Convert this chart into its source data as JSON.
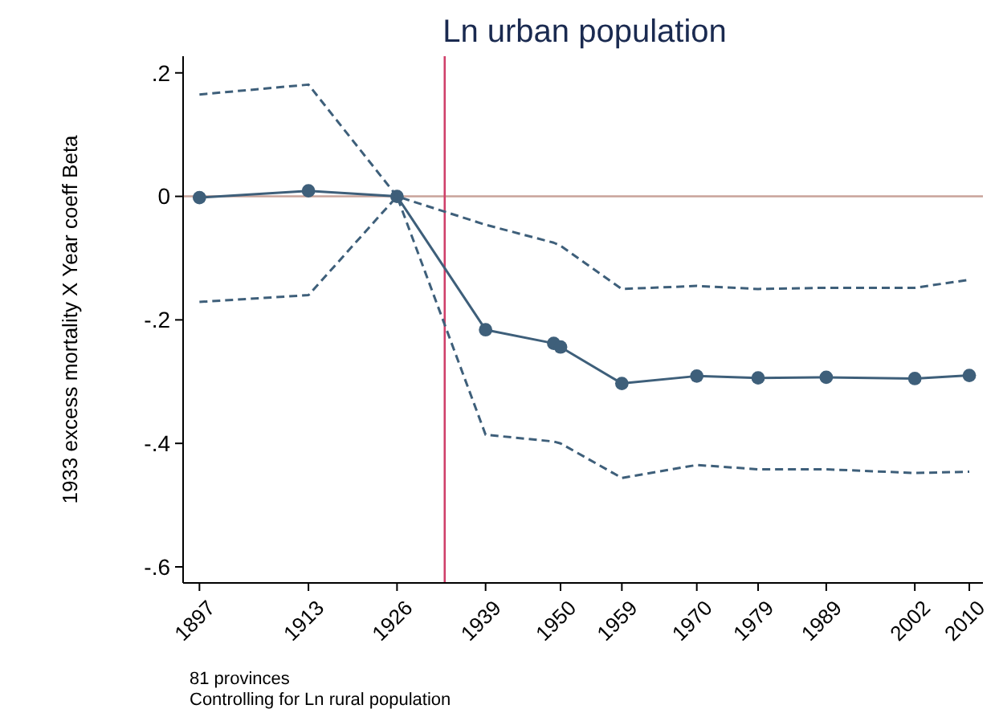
{
  "chart_data": {
    "type": "line",
    "title": "Ln urban population",
    "ylabel": "1933 excess mortality X Year coeff Beta",
    "x": [
      1897,
      1913,
      1926,
      1939,
      1949,
      1950,
      1959,
      1970,
      1979,
      1989,
      2002,
      2010
    ],
    "series": [
      {
        "color": "#3e5f7a",
        "marker": "circle",
        "line_style": "solid",
        "values": [
          -0.002,
          0.009,
          0,
          -0.216,
          -0.238,
          -0.244,
          -0.303,
          -0.291,
          -0.294,
          -0.293,
          -0.295,
          -0.29
        ]
      },
      {
        "color": "#3e5f7a",
        "marker": "none",
        "line_style": "dashed",
        "values": [
          0.165,
          0.181,
          0,
          -0.046,
          -0.075,
          -0.08,
          -0.15,
          -0.145,
          -0.15,
          -0.148,
          -0.148,
          -0.135
        ]
      },
      {
        "color": "#3e5f7a",
        "marker": "none",
        "line_style": "dashed",
        "values": [
          -0.171,
          -0.16,
          0,
          -0.386,
          -0.397,
          -0.4,
          -0.456,
          -0.435,
          -0.442,
          -0.442,
          -0.448,
          -0.446
        ]
      }
    ],
    "xlim": [
      1894.6,
      2012
    ],
    "ylim": [
      -0.626,
      0.227
    ],
    "xticks": [
      1897,
      1913,
      1926,
      1939,
      1950,
      1959,
      1970,
      1979,
      1989,
      2002,
      2010
    ],
    "yticks": [
      {
        "value": 0.2,
        "label": ".2"
      },
      {
        "value": 0,
        "label": "0"
      },
      {
        "value": -0.2,
        "label": "-.2"
      },
      {
        "value": -0.4,
        "label": "-.4"
      },
      {
        "value": -0.6,
        "label": "-.6"
      }
    ],
    "ref_lines": [
      {
        "axis": "y",
        "value": 0,
        "color": "#c8a39a"
      },
      {
        "axis": "x",
        "value": 1933,
        "color": "#d0406a"
      }
    ],
    "grid": false,
    "annotations": [
      "81 provinces",
      "Controlling for Ln rural population"
    ]
  }
}
